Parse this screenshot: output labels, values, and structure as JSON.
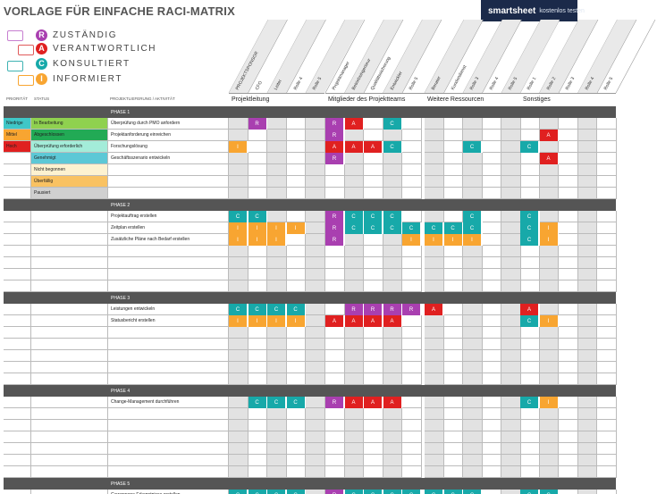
{
  "title": "VORLAGE FÜR EINFACHE RACI-MATRIX",
  "brand": {
    "name": "smartsheet",
    "cta": "kostenlos testen"
  },
  "legend": [
    {
      "letter": "R",
      "label": "ZUSTÄNDIG",
      "color": "#a93fb0"
    },
    {
      "letter": "A",
      "label": "VERANTWORTLICH",
      "color": "#e02020"
    },
    {
      "letter": "C",
      "label": "KONSULTIERT",
      "color": "#17a9a9"
    },
    {
      "letter": "I",
      "label": "INFORMIERT",
      "color": "#f8a531"
    }
  ],
  "headers": {
    "priority": "PRIORITÄT",
    "status": "STATUS",
    "task": "PROJEKTLIEFERUNG / AKTIVITÄT"
  },
  "roles": [
    "PROJEKTSPONSOR",
    "CFO",
    "Leiter",
    "Rolle 4",
    "Rolle 5",
    "Projektmanager",
    "Betriebsingenieur",
    "Qualitätssicherung",
    "Entwickler",
    "Rolle 5",
    "Berater",
    "Kundendienst",
    "Rolle 3",
    "Rolle 4",
    "Rolle 5",
    "Rolle 1",
    "Rolle 2",
    "Rolle 3",
    "Rolle 4",
    "Rolle 5"
  ],
  "groups": [
    "Projektleitung",
    "Mitglieder des Projektteams",
    "Weitere Ressourcen",
    "Sonstiges"
  ],
  "priorities": [
    {
      "label": "Niedrige",
      "color": "#3fc7c7"
    },
    {
      "label": "Mittel",
      "color": "#f8a531"
    },
    {
      "label": "Hoch",
      "color": "#e02020"
    }
  ],
  "statuses": [
    {
      "label": "In Bearbeitung",
      "color": "#8fd14f"
    },
    {
      "label": "Abgeschlossen",
      "color": "#22aa55"
    },
    {
      "label": "Überprüfung erforderlich",
      "color": "#a3ecd9"
    },
    {
      "label": "Genehmigt",
      "color": "#5cc8d6"
    },
    {
      "label": "Nicht begonnen",
      "color": "#fdf2d0"
    },
    {
      "label": "Überfällig",
      "color": "#f9c262"
    },
    {
      "label": "Pausiert",
      "color": "#d0d0d0"
    }
  ],
  "phases": [
    {
      "name": "PHASE 1",
      "rows": [
        {
          "task": "Überprüfung durch PMO anfordern",
          "cells": [
            "",
            "R",
            "",
            "",
            "",
            "R",
            "A",
            "",
            "C",
            "",
            "",
            "",
            "",
            "",
            "",
            "",
            "",
            "",
            "",
            ""
          ]
        },
        {
          "task": "Projektanforderung einreichen",
          "cells": [
            "",
            "",
            "",
            "",
            "",
            "R",
            "",
            "",
            "",
            "",
            "",
            "",
            "",
            "",
            "",
            "",
            "A",
            "",
            "",
            ""
          ]
        },
        {
          "task": "Forschungslösung",
          "cells": [
            "I",
            "",
            "",
            "",
            "",
            "A",
            "A",
            "A",
            "C",
            "",
            "",
            "",
            "C",
            "",
            "",
            "C",
            "",
            "",
            "",
            ""
          ]
        },
        {
          "task": "Geschäftsszenario entwickeln",
          "cells": [
            "",
            "",
            "",
            "",
            "",
            "R",
            "",
            "",
            "",
            "",
            "",
            "",
            "",
            "",
            "",
            "",
            "A",
            "",
            "",
            ""
          ]
        }
      ]
    },
    {
      "name": "PHASE 2",
      "rows": [
        {
          "task": "Projektauftrag erstellen",
          "cells": [
            "C",
            "C",
            "",
            "",
            "",
            "R",
            "C",
            "C",
            "C",
            "",
            "",
            "",
            "C",
            "",
            "",
            "C",
            "",
            "",
            "",
            ""
          ]
        },
        {
          "task": "Zeitplan erstellen",
          "cells": [
            "I",
            "I",
            "I",
            "I",
            "",
            "R",
            "C",
            "C",
            "C",
            "C",
            "C",
            "C",
            "C",
            "",
            "",
            "C",
            "I",
            "",
            "",
            ""
          ]
        },
        {
          "task": "Zusätzliche Pläne nach Bedarf erstellen",
          "cells": [
            "I",
            "I",
            "I",
            "",
            "",
            "R",
            "",
            "",
            "",
            "I",
            "I",
            "I",
            "I",
            "",
            "",
            "C",
            "I",
            "",
            "",
            ""
          ]
        }
      ]
    },
    {
      "name": "PHASE 3",
      "rows": [
        {
          "task": "Leistungen entwickeln",
          "cells": [
            "C",
            "C",
            "C",
            "C",
            "",
            "",
            "R",
            "R",
            "R",
            "R",
            "A",
            "",
            "",
            "",
            "",
            "A",
            "",
            "",
            "",
            ""
          ]
        },
        {
          "task": "Statusbericht erstellen",
          "cells": [
            "I",
            "I",
            "I",
            "I",
            "",
            "A",
            "A",
            "A",
            "A",
            "",
            "",
            "",
            "",
            "",
            "",
            "C",
            "I",
            "",
            "",
            ""
          ]
        }
      ]
    },
    {
      "name": "PHASE 4",
      "rows": [
        {
          "task": "Change-Management durchführen",
          "cells": [
            "",
            "C",
            "C",
            "C",
            "",
            "R",
            "A",
            "A",
            "A",
            "",
            "",
            "",
            "",
            "",
            "",
            "C",
            "I",
            "",
            "",
            ""
          ]
        }
      ]
    },
    {
      "name": "PHASE 5",
      "rows": [
        {
          "task": "Gewonnene Erkenntnisse erstellen",
          "cells": [
            "C",
            "C",
            "C",
            "C",
            "",
            "R",
            "C",
            "C",
            "C",
            "C",
            "C",
            "C",
            "C",
            "",
            "",
            "C",
            "C",
            "",
            "",
            ""
          ]
        }
      ]
    }
  ]
}
